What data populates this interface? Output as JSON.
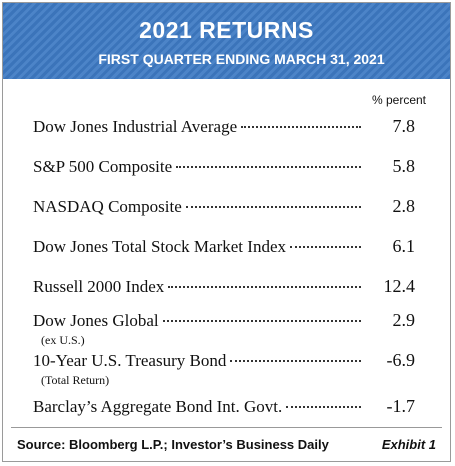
{
  "header": {
    "title": "2021 RETURNS",
    "subtitle": "FIRST QUARTER ENDING MARCH 31, 2021"
  },
  "table": {
    "column_header": "% percent",
    "rows": [
      {
        "label": "Dow Jones Industrial Average",
        "value": 7.8
      },
      {
        "label": "S&P 500 Composite",
        "value": 5.8
      },
      {
        "label": "NASDAQ Composite",
        "value": 2.8
      },
      {
        "label": "Dow Jones Total Stock Market Index",
        "value": 6.1
      },
      {
        "label": "Russell 2000 Index",
        "value": 12.4
      },
      {
        "label": "Dow Jones Global",
        "note": "(ex U.S.)",
        "value": 2.9
      },
      {
        "label": "10-Year U.S. Treasury Bond",
        "note": "(Total Return)",
        "value": -6.9
      },
      {
        "label": "Barclay’s Aggregate Bond Int. Govt.",
        "value": -1.7
      }
    ]
  },
  "footer": {
    "source": "Source: Bloomberg L.P.; Investor’s Business Daily",
    "exhibit": "Exhibit 1"
  }
}
